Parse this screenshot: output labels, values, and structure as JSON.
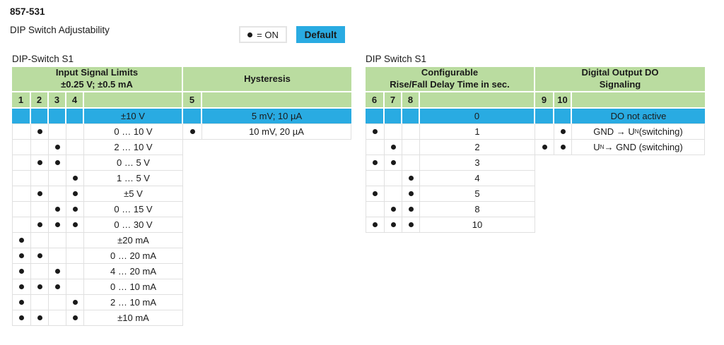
{
  "header": {
    "article": "857-531",
    "title": "DIP Switch Adjustability"
  },
  "legend": {
    "on_label": "= ON",
    "default_label": "Default"
  },
  "colors": {
    "green": "#BADCA0",
    "cyan": "#29ABE2",
    "grid": "#E0E0E0",
    "text": "#1A1A1A"
  },
  "left_table": {
    "title": "DIP-Switch S1",
    "sections": [
      {
        "header": [
          "Input Signal Limits",
          "±0.25 V; ±0.5 mA"
        ],
        "switches": [
          "1",
          "2",
          "3",
          "4"
        ],
        "rows": [
          {
            "dots": [
              0,
              0,
              0,
              0
            ],
            "value": "±10 V",
            "default": true
          },
          {
            "dots": [
              0,
              1,
              0,
              0
            ],
            "value": "0 … 10 V"
          },
          {
            "dots": [
              0,
              0,
              1,
              0
            ],
            "value": "2 … 10 V"
          },
          {
            "dots": [
              0,
              1,
              1,
              0
            ],
            "value": "0 … 5 V"
          },
          {
            "dots": [
              0,
              0,
              0,
              1
            ],
            "value": "1 … 5 V"
          },
          {
            "dots": [
              0,
              1,
              0,
              1
            ],
            "value": "±5 V"
          },
          {
            "dots": [
              0,
              0,
              1,
              1
            ],
            "value": "0 … 15 V"
          },
          {
            "dots": [
              0,
              1,
              1,
              1
            ],
            "value": "0 … 30 V"
          },
          {
            "dots": [
              1,
              0,
              0,
              0
            ],
            "value": "±20 mA"
          },
          {
            "dots": [
              1,
              1,
              0,
              0
            ],
            "value": "0 … 20 mA"
          },
          {
            "dots": [
              1,
              0,
              1,
              0
            ],
            "value": "4 … 20 mA"
          },
          {
            "dots": [
              1,
              1,
              1,
              0
            ],
            "value": "0 … 10 mA"
          },
          {
            "dots": [
              1,
              0,
              0,
              1
            ],
            "value": "2 … 10 mA"
          },
          {
            "dots": [
              1,
              1,
              0,
              1
            ],
            "value": "±10 mA"
          }
        ]
      },
      {
        "header": [
          "Hysteresis"
        ],
        "switches": [
          "5"
        ],
        "rows": [
          {
            "dots": [
              0
            ],
            "value": "5 mV; 10 µA",
            "default": true
          },
          {
            "dots": [
              1
            ],
            "value": "10 mV, 20 µA"
          }
        ]
      }
    ]
  },
  "right_table": {
    "title": "DIP Switch S1",
    "sections": [
      {
        "header": [
          "Configurable",
          "Rise/Fall Delay Time in sec."
        ],
        "switches": [
          "6",
          "7",
          "8"
        ],
        "rows": [
          {
            "dots": [
              0,
              0,
              0
            ],
            "value": "0",
            "default": true
          },
          {
            "dots": [
              1,
              0,
              0
            ],
            "value": "1"
          },
          {
            "dots": [
              0,
              1,
              0
            ],
            "value": "2"
          },
          {
            "dots": [
              1,
              1,
              0
            ],
            "value": "3"
          },
          {
            "dots": [
              0,
              0,
              1
            ],
            "value": "4"
          },
          {
            "dots": [
              1,
              0,
              1
            ],
            "value": "5"
          },
          {
            "dots": [
              0,
              1,
              1
            ],
            "value": "8"
          },
          {
            "dots": [
              1,
              1,
              1
            ],
            "value": "10"
          }
        ]
      },
      {
        "header": [
          "Digital Output DO",
          "Signaling"
        ],
        "switches": [
          "9",
          "10"
        ],
        "rows": [
          {
            "dots": [
              0,
              0
            ],
            "value": "DO not active",
            "default": true
          },
          {
            "dots": [
              0,
              1
            ],
            "value": [
              "GND → U",
              {
                "sub": "N"
              },
              " (switching)"
            ]
          },
          {
            "dots": [
              1,
              1
            ],
            "value": [
              "U",
              {
                "sub": "N"
              },
              " → GND (switching)"
            ]
          }
        ]
      }
    ]
  }
}
